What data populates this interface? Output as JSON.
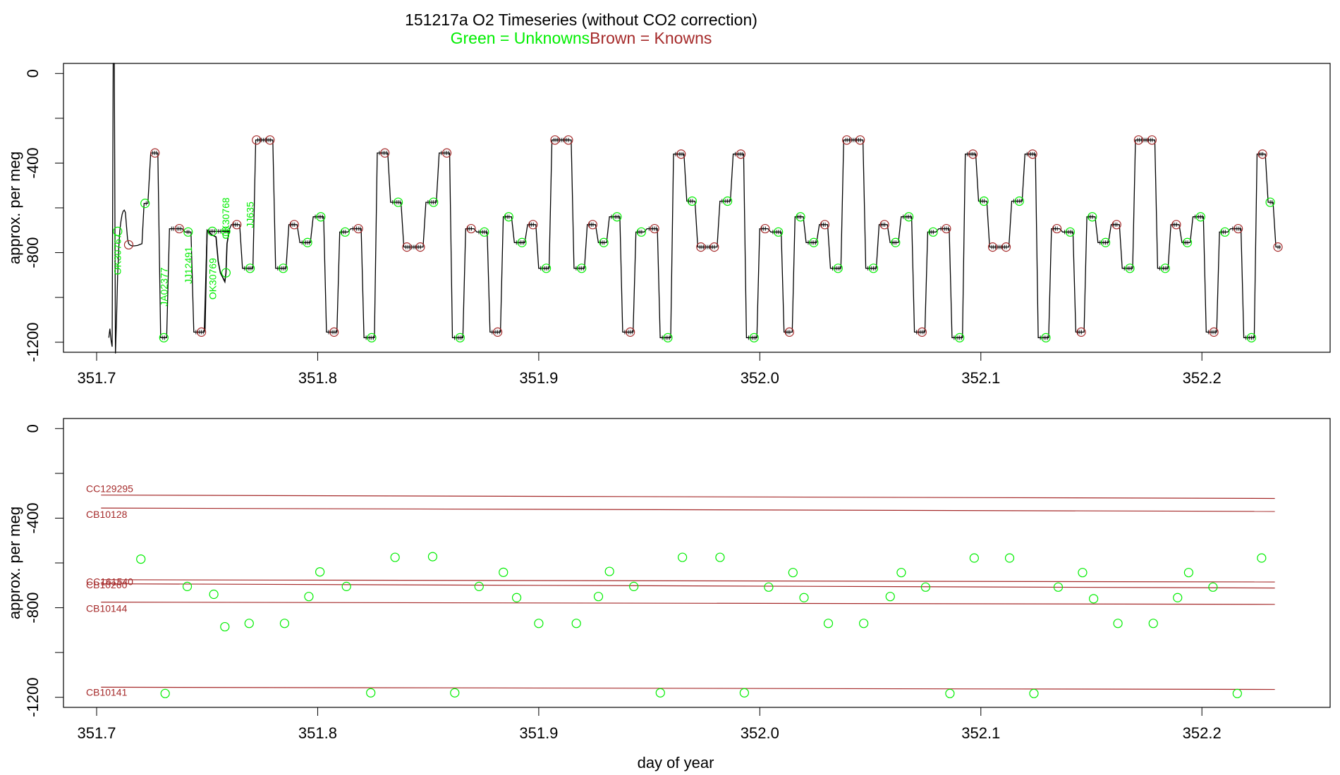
{
  "title": "151217a   O2 Timeseries (without CO2 correction)",
  "legend": {
    "unknowns_label": "Green = Unknowns",
    "knowns_label": "Brown = Knowns",
    "unknowns_color": "#00ee00",
    "knowns_color": "#a52a2a"
  },
  "chart_data": [
    {
      "type": "line",
      "panel": "top",
      "ylabel": "approx. per meg",
      "xlabel": "",
      "xlim": [
        351.685,
        352.258
      ],
      "ylim": [
        -1245,
        45
      ],
      "x_ticks": [
        "351.7",
        "351.8",
        "351.9",
        "352.0",
        "352.1",
        "352.2"
      ],
      "y_ticks": [
        "0",
        "-400",
        "-800",
        "-1200"
      ],
      "unknown_labels": [
        {
          "text": "OK30767",
          "x": 351.711,
          "y": -900
        },
        {
          "text": "JA02377",
          "x": 351.732,
          "y": -1040
        },
        {
          "text": "JJ12491",
          "x": 351.743,
          "y": -940
        },
        {
          "text": "OK30769",
          "x": 351.754,
          "y": -1010
        },
        {
          "text": "OK30768",
          "x": 351.76,
          "y": -740
        },
        {
          "text": "JJ635",
          "x": 351.771,
          "y": -690
        }
      ],
      "segments": [
        {
          "start": 351.7205,
          "end": 351.7235,
          "value": -580,
          "known": false
        },
        {
          "start": 351.7235,
          "end": 351.728,
          "value": -355,
          "known": true
        },
        {
          "start": 351.728,
          "end": 351.732,
          "value": -1180,
          "known": false
        },
        {
          "start": 351.732,
          "end": 351.739,
          "value": -693,
          "known": true
        },
        {
          "start": 351.739,
          "end": 351.743,
          "value": -708,
          "known": false
        },
        {
          "start": 351.743,
          "end": 351.749,
          "value": -1155,
          "known": true
        },
        {
          "start": 351.749,
          "end": 351.76,
          "value": -705,
          "known": false
        },
        {
          "start": 351.76,
          "end": 351.765,
          "value": -675,
          "known": true
        },
        {
          "start": 351.765,
          "end": 351.771,
          "value": -870,
          "known": false
        },
        {
          "start": 351.771,
          "end": 351.78,
          "value": -297,
          "known": true
        },
        {
          "start": 351.78,
          "end": 351.786,
          "value": -870,
          "known": false
        },
        {
          "start": 351.786,
          "end": 351.791,
          "value": -675,
          "known": true
        },
        {
          "start": 351.791,
          "end": 351.797,
          "value": -755,
          "known": false
        },
        {
          "start": 351.797,
          "end": 351.803,
          "value": -640,
          "known": false
        },
        {
          "start": 351.803,
          "end": 351.809,
          "value": -1155,
          "known": true
        },
        {
          "start": 351.809,
          "end": 351.814,
          "value": -708,
          "known": false
        },
        {
          "start": 351.814,
          "end": 351.82,
          "value": -693,
          "known": true
        },
        {
          "start": 351.82,
          "end": 351.826,
          "value": -1180,
          "known": false
        },
        {
          "start": 351.826,
          "end": 351.832,
          "value": -355,
          "known": true
        },
        {
          "start": 351.832,
          "end": 351.838,
          "value": -575,
          "known": false
        },
        {
          "start": 351.838,
          "end": 351.848,
          "value": -775,
          "known": true
        },
        {
          "start": 351.848,
          "end": 351.854,
          "value": -575,
          "known": false
        },
        {
          "start": 351.854,
          "end": 351.86,
          "value": -355,
          "known": true
        },
        {
          "start": 351.86,
          "end": 351.866,
          "value": -1180,
          "known": false
        },
        {
          "start": 351.866,
          "end": 351.871,
          "value": -693,
          "known": true
        },
        {
          "start": 351.871,
          "end": 351.877,
          "value": -708,
          "known": false
        },
        {
          "start": 351.877,
          "end": 351.883,
          "value": -1155,
          "known": true
        },
        {
          "start": 351.883,
          "end": 351.888,
          "value": -640,
          "known": false
        },
        {
          "start": 351.888,
          "end": 351.894,
          "value": -755,
          "known": false
        },
        {
          "start": 351.894,
          "end": 351.899,
          "value": -675,
          "known": true
        },
        {
          "start": 351.899,
          "end": 351.905,
          "value": -870,
          "known": false
        },
        {
          "start": 351.905,
          "end": 351.915,
          "value": -297,
          "known": true
        },
        {
          "start": 351.915,
          "end": 351.921,
          "value": -870,
          "known": false
        },
        {
          "start": 351.921,
          "end": 351.926,
          "value": -675,
          "known": true
        },
        {
          "start": 351.926,
          "end": 351.931,
          "value": -755,
          "known": false
        },
        {
          "start": 351.931,
          "end": 351.937,
          "value": -640,
          "known": false
        },
        {
          "start": 351.937,
          "end": 351.943,
          "value": -1155,
          "known": true
        },
        {
          "start": 351.943,
          "end": 351.948,
          "value": -708,
          "known": false
        },
        {
          "start": 351.948,
          "end": 351.954,
          "value": -693,
          "known": true
        },
        {
          "start": 351.954,
          "end": 351.96,
          "value": -1180,
          "known": false
        },
        {
          "start": 351.96,
          "end": 351.966,
          "value": -360,
          "known": true
        },
        {
          "start": 351.966,
          "end": 351.971,
          "value": -570,
          "known": false
        },
        {
          "start": 351.971,
          "end": 351.981,
          "value": -775,
          "known": true
        },
        {
          "start": 351.981,
          "end": 351.987,
          "value": -570,
          "known": false
        },
        {
          "start": 351.987,
          "end": 351.993,
          "value": -360,
          "known": true
        },
        {
          "start": 351.993,
          "end": 351.999,
          "value": -1180,
          "known": false
        },
        {
          "start": 351.999,
          "end": 352.004,
          "value": -693,
          "known": true
        },
        {
          "start": 352.004,
          "end": 352.01,
          "value": -708,
          "known": false
        },
        {
          "start": 352.01,
          "end": 352.015,
          "value": -1155,
          "known": true
        },
        {
          "start": 352.015,
          "end": 352.02,
          "value": -640,
          "known": false
        },
        {
          "start": 352.02,
          "end": 352.026,
          "value": -755,
          "known": false
        },
        {
          "start": 352.026,
          "end": 352.031,
          "value": -675,
          "known": true
        },
        {
          "start": 352.031,
          "end": 352.037,
          "value": -870,
          "known": false
        },
        {
          "start": 352.037,
          "end": 352.047,
          "value": -297,
          "known": true
        },
        {
          "start": 352.047,
          "end": 352.053,
          "value": -870,
          "known": false
        },
        {
          "start": 352.053,
          "end": 352.058,
          "value": -675,
          "known": true
        },
        {
          "start": 352.058,
          "end": 352.063,
          "value": -755,
          "known": false
        },
        {
          "start": 352.063,
          "end": 352.069,
          "value": -640,
          "known": false
        },
        {
          "start": 352.069,
          "end": 352.075,
          "value": -1155,
          "known": true
        },
        {
          "start": 352.075,
          "end": 352.08,
          "value": -708,
          "known": false
        },
        {
          "start": 352.08,
          "end": 352.086,
          "value": -693,
          "known": true
        },
        {
          "start": 352.086,
          "end": 352.092,
          "value": -1180,
          "known": false
        },
        {
          "start": 352.092,
          "end": 352.098,
          "value": -360,
          "known": true
        },
        {
          "start": 352.098,
          "end": 352.103,
          "value": -570,
          "known": false
        },
        {
          "start": 352.103,
          "end": 352.113,
          "value": -775,
          "known": true
        },
        {
          "start": 352.113,
          "end": 352.119,
          "value": -570,
          "known": false
        },
        {
          "start": 352.119,
          "end": 352.125,
          "value": -360,
          "known": true
        },
        {
          "start": 352.125,
          "end": 352.131,
          "value": -1180,
          "known": false
        },
        {
          "start": 352.131,
          "end": 352.136,
          "value": -693,
          "known": true
        },
        {
          "start": 352.136,
          "end": 352.142,
          "value": -708,
          "known": false
        },
        {
          "start": 352.142,
          "end": 352.147,
          "value": -1155,
          "known": true
        },
        {
          "start": 352.147,
          "end": 352.152,
          "value": -640,
          "known": false
        },
        {
          "start": 352.152,
          "end": 352.158,
          "value": -755,
          "known": false
        },
        {
          "start": 352.158,
          "end": 352.163,
          "value": -675,
          "known": true
        },
        {
          "start": 352.163,
          "end": 352.169,
          "value": -870,
          "known": false
        },
        {
          "start": 352.169,
          "end": 352.179,
          "value": -297,
          "known": true
        },
        {
          "start": 352.179,
          "end": 352.185,
          "value": -870,
          "known": false
        },
        {
          "start": 352.185,
          "end": 352.19,
          "value": -675,
          "known": true
        },
        {
          "start": 352.19,
          "end": 352.195,
          "value": -755,
          "known": false
        },
        {
          "start": 352.195,
          "end": 352.201,
          "value": -640,
          "known": false
        },
        {
          "start": 352.201,
          "end": 352.207,
          "value": -1155,
          "known": true
        },
        {
          "start": 352.207,
          "end": 352.212,
          "value": -708,
          "known": false
        },
        {
          "start": 352.212,
          "end": 352.218,
          "value": -693,
          "known": true
        },
        {
          "start": 352.218,
          "end": 352.224,
          "value": -1180,
          "known": false
        },
        {
          "start": 352.224,
          "end": 352.229,
          "value": -360,
          "known": true
        },
        {
          "start": 352.229,
          "end": 352.2325,
          "value": -575,
          "known": false
        },
        {
          "start": 352.2325,
          "end": 352.236,
          "value": -775,
          "known": true
        }
      ],
      "initial_trace": {
        "x": [
          351.7055,
          351.706,
          351.7065,
          351.707,
          351.7075,
          351.708,
          351.7085,
          351.709,
          351.7095,
          351.71,
          351.7105,
          351.711,
          351.7115,
          351.712,
          351.7125,
          351.713,
          351.7135,
          351.714,
          351.7145,
          351.715,
          351.7155,
          351.716,
          351.717,
          351.7185,
          351.7205
        ],
        "y": [
          -1180,
          -1140,
          -1190,
          -1220,
          45,
          45,
          -1250,
          -1100,
          -900,
          -780,
          -700,
          -660,
          -630,
          -615,
          -610,
          -620,
          -680,
          -740,
          -760,
          -765,
          -768,
          -770,
          -770,
          -768,
          -760
        ]
      },
      "drift_trace": {
        "x": [
          351.749,
          351.75,
          351.751,
          351.752,
          351.753,
          351.754,
          351.755,
          351.756,
          351.757,
          351.758,
          351.7585,
          351.759,
          351.76
        ],
        "y": [
          -1150,
          -700,
          -710,
          -720,
          -725,
          -730,
          -840,
          -890,
          -910,
          -930,
          -890,
          -760,
          -700
        ]
      },
      "open_markers": [
        {
          "x": 351.7095,
          "y": -705,
          "known": false
        },
        {
          "x": 351.7145,
          "y": -765,
          "known": true
        },
        {
          "x": 351.7585,
          "y": -890,
          "known": false
        }
      ]
    },
    {
      "type": "scatter",
      "panel": "bottom",
      "ylabel": "approx. per meg",
      "xlabel": "day of year",
      "xlim": [
        351.685,
        352.258
      ],
      "ylim": [
        -1245,
        45
      ],
      "x_ticks": [
        "351.7",
        "351.8",
        "351.9",
        "352.0",
        "352.1",
        "352.2"
      ],
      "y_ticks": [
        "0",
        "-400",
        "-800",
        "-1200"
      ],
      "known_lines": [
        {
          "name": "CC129295",
          "x": [
            351.702,
            352.233
          ],
          "y": [
            -297,
            -312
          ]
        },
        {
          "name": "CB10128",
          "x": [
            351.702,
            352.233
          ],
          "y": [
            -355,
            -370
          ]
        },
        {
          "name": "CB10260",
          "x": [
            351.702,
            352.233
          ],
          "y": [
            -675,
            -685
          ]
        },
        {
          "name": "CC161540",
          "x": [
            351.702,
            352.233
          ],
          "y": [
            -693,
            -712
          ]
        },
        {
          "name": "CB10144",
          "x": [
            351.702,
            352.233
          ],
          "y": [
            -775,
            -785
          ]
        },
        {
          "name": "CB10141",
          "x": [
            351.702,
            352.233
          ],
          "y": [
            -1155,
            -1165
          ]
        }
      ],
      "unknowns": {
        "x": [
          351.72,
          351.731,
          351.741,
          351.753,
          351.758,
          351.769,
          351.785,
          351.796,
          351.801,
          351.813,
          351.824,
          351.835,
          351.852,
          351.862,
          351.873,
          351.884,
          351.89,
          351.9,
          351.917,
          351.927,
          351.932,
          351.943,
          351.955,
          351.965,
          351.982,
          351.993,
          352.004,
          352.015,
          352.02,
          352.031,
          352.047,
          352.059,
          352.064,
          352.075,
          352.086,
          352.097,
          352.113,
          352.124,
          352.135,
          352.146,
          352.151,
          352.162,
          352.178,
          352.189,
          352.194,
          352.205,
          352.216,
          352.227
        ],
        "y": [
          -583,
          -1183,
          -705,
          -740,
          -885,
          -870,
          -870,
          -750,
          -640,
          -705,
          -1180,
          -575,
          -572,
          -1180,
          -705,
          -642,
          -755,
          -870,
          -870,
          -750,
          -638,
          -705,
          -1180,
          -575,
          -575,
          -1180,
          -708,
          -643,
          -755,
          -870,
          -870,
          -750,
          -643,
          -708,
          -1183,
          -578,
          -578,
          -1183,
          -708,
          -643,
          -760,
          -870,
          -870,
          -755,
          -643,
          -708,
          -1183,
          -578
        ]
      }
    }
  ]
}
